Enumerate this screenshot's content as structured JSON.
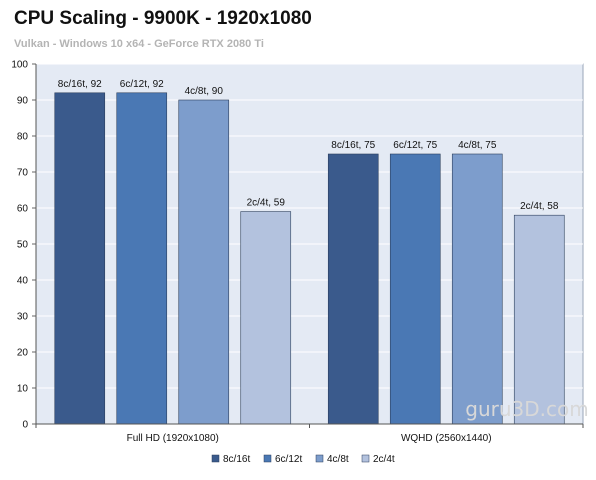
{
  "chart_data": {
    "type": "bar",
    "title": "CPU Scaling - 9900K - 1920x1080",
    "subtitle": "Vulkan - Windows 10 x64 - GeForce RTX 2080 Ti",
    "categories": [
      "Full HD (1920x1080)",
      "WQHD (2560x1440)"
    ],
    "series": [
      {
        "name": "8c/16t",
        "values": [
          92,
          75
        ],
        "color": "#3a5a8c"
      },
      {
        "name": "6c/12t",
        "values": [
          92,
          75
        ],
        "color": "#4a78b4"
      },
      {
        "name": "4c/8t",
        "values": [
          90,
          75
        ],
        "color": "#7d9dcc"
      },
      {
        "name": "2c/4t",
        "values": [
          59,
          58
        ],
        "color": "#b3c2de"
      }
    ],
    "data_labels": [
      [
        "8c/16t, 92",
        "8c/16t, 75"
      ],
      [
        "6c/12t, 92",
        "6c/12t, 75"
      ],
      [
        "4c/8t, 90",
        "4c/8t, 75"
      ],
      [
        "2c/4t, 59",
        "2c/4t, 58"
      ]
    ],
    "yticks": [
      0,
      10,
      20,
      30,
      40,
      50,
      60,
      70,
      80,
      90,
      100
    ],
    "ylim": [
      0,
      100
    ],
    "xlabel": "",
    "ylabel": "",
    "grid": true,
    "legend_position": "bottom",
    "plot_background": "#e4eaf4",
    "watermark": "guru3D.com"
  }
}
